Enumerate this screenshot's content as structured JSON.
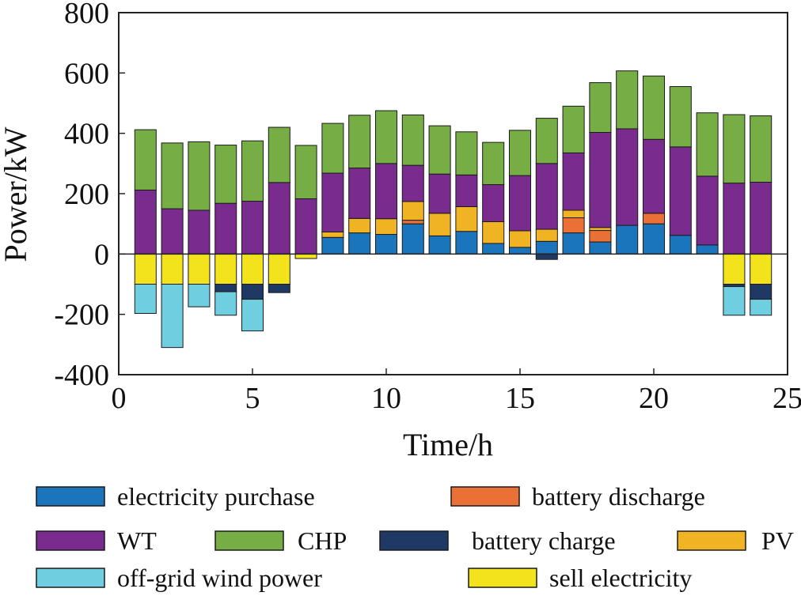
{
  "chart_data": {
    "type": "bar",
    "stacked": true,
    "xlabel": "Time/h",
    "ylabel": "Power/kW",
    "xlim": [
      0,
      25
    ],
    "ylim": [
      -400,
      800
    ],
    "xticks": [
      "0",
      "5",
      "10",
      "15",
      "20",
      "25"
    ],
    "yticks": [
      "-400",
      "-200",
      "0",
      "200",
      "400",
      "600",
      "800"
    ],
    "zero_line": true,
    "grid": false,
    "legend_placement": "bottom",
    "x": [
      1,
      2,
      3,
      4,
      5,
      6,
      7,
      8,
      9,
      10,
      11,
      12,
      13,
      14,
      15,
      16,
      17,
      18,
      19,
      20,
      21,
      22,
      23,
      24
    ],
    "series": [
      {
        "name": "electricity purchase",
        "color": "#1b75bc",
        "values": [
          0,
          0,
          0,
          0,
          0,
          0,
          0,
          55,
          70,
          65,
          100,
          60,
          75,
          35,
          22,
          42,
          70,
          40,
          95,
          100,
          62,
          30,
          0,
          0
        ]
      },
      {
        "name": "battery discharge",
        "color": "#ea7035",
        "values": [
          0,
          0,
          0,
          0,
          0,
          0,
          0,
          0,
          0,
          0,
          12,
          0,
          0,
          0,
          0,
          0,
          50,
          38,
          0,
          35,
          0,
          0,
          0,
          0
        ]
      },
      {
        "name": "PV",
        "color": "#f0b323",
        "values": [
          0,
          0,
          0,
          0,
          0,
          0,
          0,
          18,
          48,
          52,
          62,
          75,
          82,
          72,
          55,
          40,
          25,
          10,
          0,
          0,
          0,
          0,
          0,
          0
        ]
      },
      {
        "name": "WT",
        "color": "#7a2c8e",
        "values": [
          212,
          150,
          145,
          168,
          175,
          237,
          183,
          195,
          167,
          183,
          120,
          130,
          105,
          123,
          183,
          218,
          190,
          315,
          320,
          245,
          293,
          228,
          235,
          238
        ]
      },
      {
        "name": "CHP",
        "color": "#77ad45",
        "values": [
          200,
          218,
          227,
          193,
          200,
          183,
          177,
          165,
          175,
          175,
          167,
          160,
          143,
          140,
          150,
          150,
          155,
          165,
          192,
          210,
          200,
          210,
          227,
          220
        ]
      },
      {
        "name": "sell electricity",
        "color": "#f2e31c",
        "values": [
          -100,
          -100,
          -100,
          -100,
          -100,
          -100,
          -15,
          0,
          0,
          0,
          0,
          0,
          0,
          0,
          0,
          0,
          0,
          0,
          0,
          0,
          0,
          0,
          -100,
          -100
        ]
      },
      {
        "name": "battery charge",
        "color": "#1f3864",
        "values": [
          0,
          0,
          0,
          -25,
          -50,
          -28,
          0,
          0,
          0,
          0,
          0,
          0,
          0,
          0,
          0,
          -18,
          0,
          0,
          0,
          0,
          0,
          0,
          -8,
          -50
        ]
      },
      {
        "name": "off-grid wind power",
        "color": "#6fcfe0",
        "values": [
          -97,
          -210,
          -75,
          -78,
          -105,
          0,
          0,
          0,
          0,
          0,
          0,
          0,
          0,
          0,
          0,
          0,
          0,
          0,
          0,
          0,
          0,
          0,
          -95,
          -53
        ]
      }
    ],
    "legend_layout": [
      [
        {
          "label": "electricity purchase",
          "color": "#1b75bc"
        },
        {
          "label": "battery discharge",
          "color": "#ea7035"
        }
      ],
      [
        {
          "label": "WT",
          "color": "#7a2c8e"
        },
        {
          "label": "CHP",
          "color": "#77ad45"
        },
        {
          "label": "battery charge",
          "color": "#1f3864"
        },
        {
          "label": "PV",
          "color": "#f0b323"
        }
      ],
      [
        {
          "label": "off-grid wind power",
          "color": "#6fcfe0"
        },
        {
          "label": "sell electricity",
          "color": "#f2e31c"
        }
      ]
    ]
  }
}
